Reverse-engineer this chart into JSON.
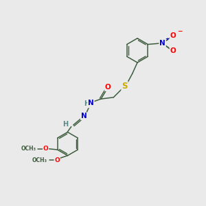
{
  "bg_color": "#eaeaea",
  "bond_color": "#3d5c3d",
  "atom_colors": {
    "O": "#ff0000",
    "N": "#0000cc",
    "S": "#ccaa00",
    "H": "#5a8888",
    "C": "#3d5c3d"
  },
  "font_size_atom": 7.5,
  "font_size_small": 6.5,
  "lw": 1.1
}
